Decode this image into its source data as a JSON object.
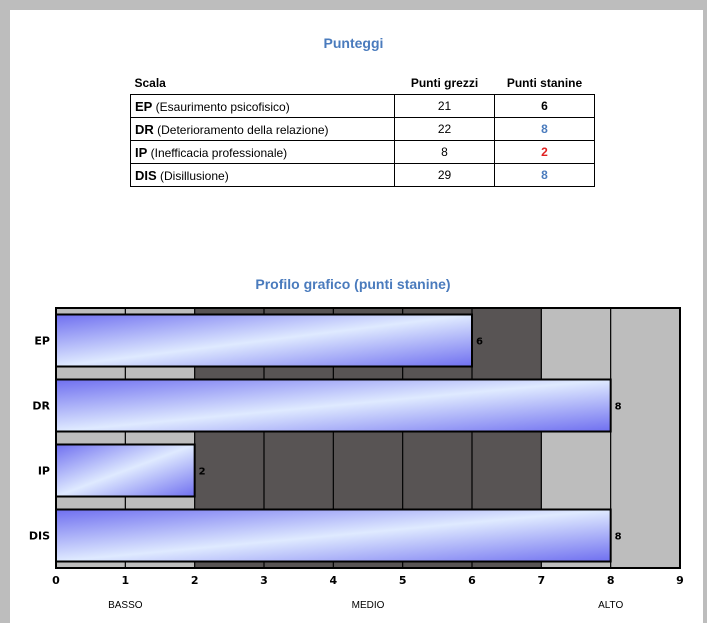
{
  "scores": {
    "title": "Punteggi",
    "headers": {
      "scale": "Scala",
      "raw": "Punti grezzi",
      "stanine": "Punti stanine"
    },
    "rows": [
      {
        "abbr": "EP",
        "desc": " (Esaurimento psicofisico)",
        "raw": "21",
        "stanine": "6",
        "color": "#000000"
      },
      {
        "abbr": "DR",
        "desc": " (Deterioramento della relazione)",
        "raw": "22",
        "stanine": "8",
        "color": "#4a7bbd"
      },
      {
        "abbr": "IP",
        "desc": " (Inefficacia professionale)",
        "raw": "8",
        "stanine": "2",
        "color": "#e02020"
      },
      {
        "abbr": "DIS",
        "desc": " (Disillusione)",
        "raw": "29",
        "stanine": "8",
        "color": "#4a7bbd"
      }
    ]
  },
  "chart_data": {
    "type": "bar",
    "orientation": "horizontal",
    "title": "Profilo grafico (punti stanine)",
    "categories": [
      "EP",
      "DR",
      "IP",
      "DIS"
    ],
    "values": [
      6,
      8,
      2,
      8
    ],
    "xlim": [
      0,
      9
    ],
    "ticks": [
      "0",
      "1",
      "2",
      "3",
      "4",
      "5",
      "6",
      "7",
      "8",
      "9"
    ],
    "zones": [
      {
        "label": "BASSO",
        "range": [
          0,
          2
        ],
        "color": "#bdbdbd"
      },
      {
        "label": "MEDIO",
        "range": [
          2,
          7
        ],
        "color": "#585454"
      },
      {
        "label": "ALTO",
        "range": [
          7,
          9
        ],
        "color": "#bdbdbd"
      }
    ],
    "bar_gradient": [
      "#6f6ff0",
      "#dfeaff",
      "#6f6ff0"
    ]
  }
}
